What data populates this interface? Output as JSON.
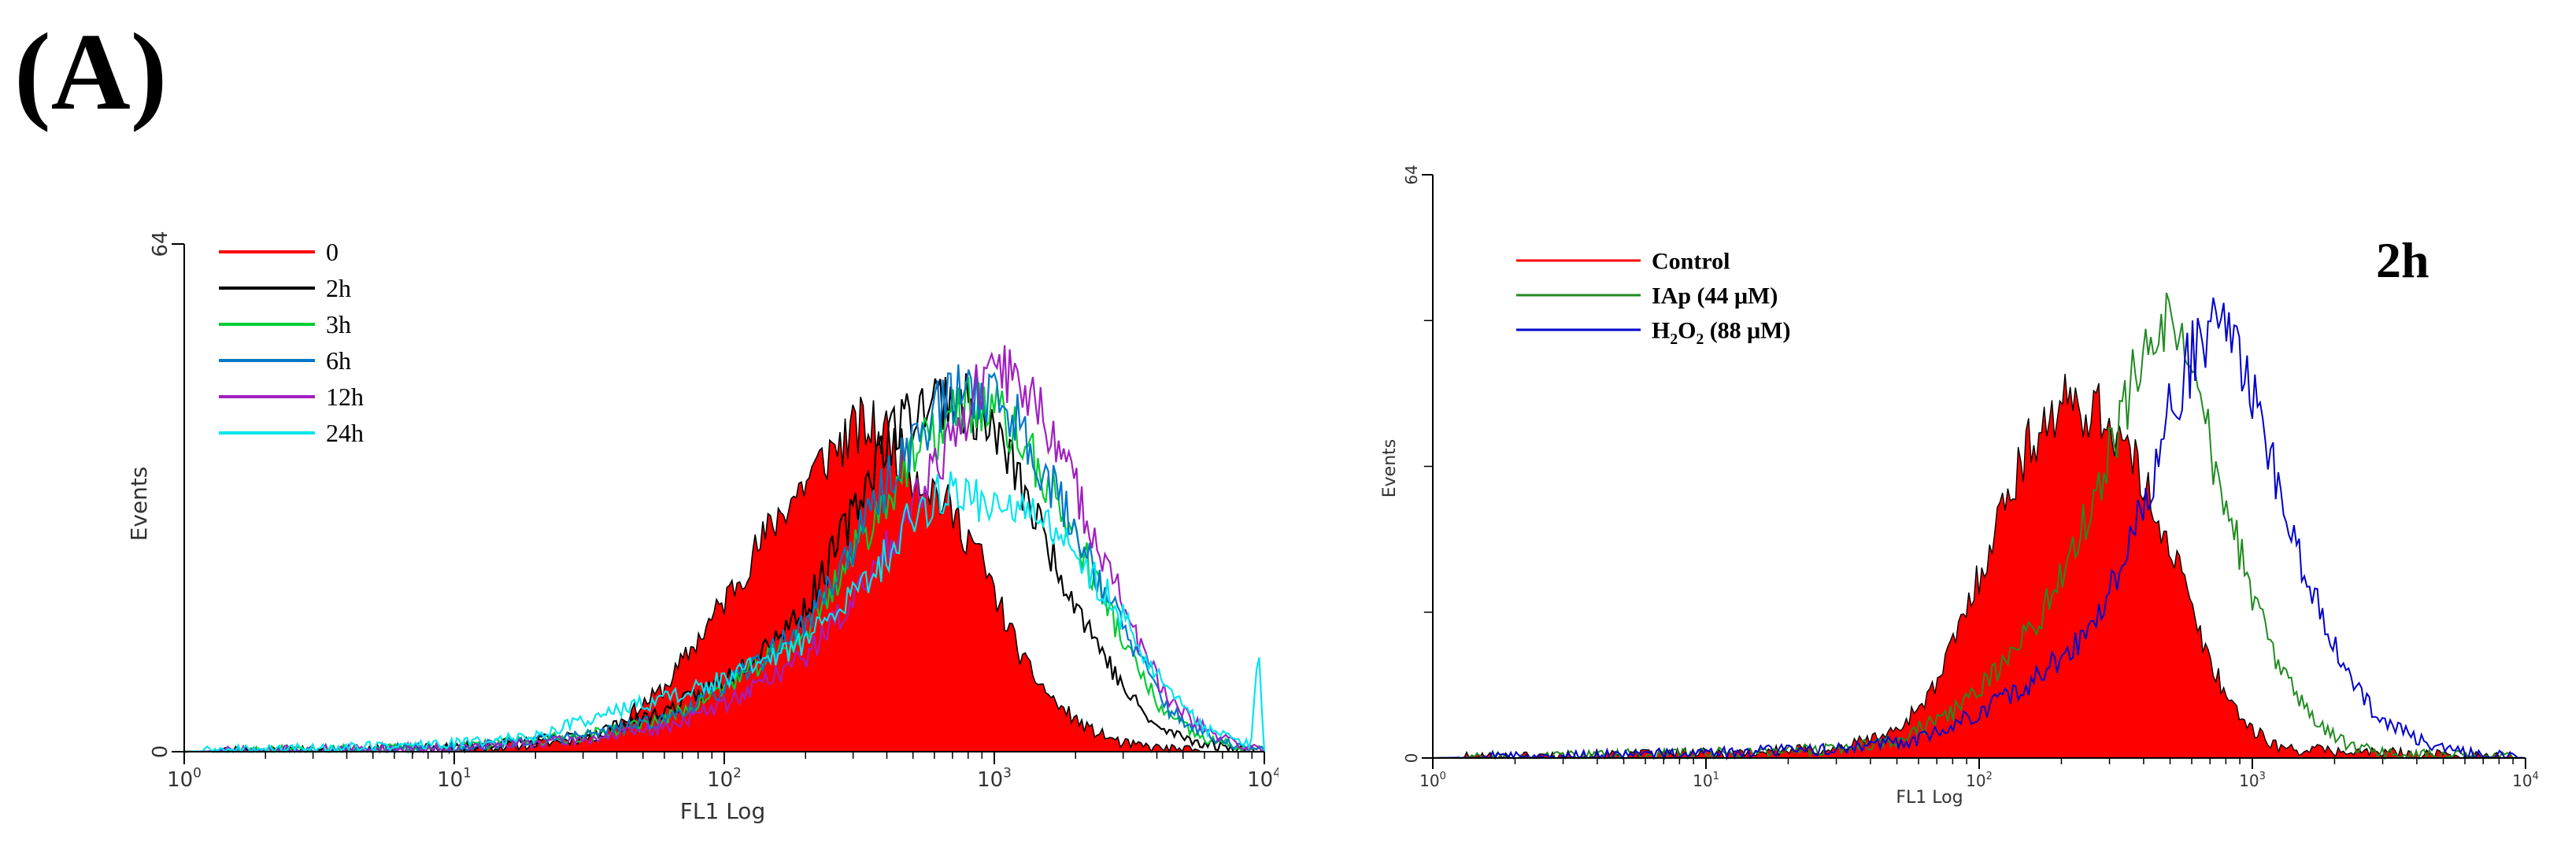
{
  "figure": {
    "panel_label": "(A)"
  },
  "chart_data": [
    {
      "type": "area",
      "subtype": "flow-cytometry-histogram",
      "title": "",
      "xlabel": "FL1 Log",
      "ylabel": "Events",
      "x_scale": "log",
      "xlim": [
        1,
        10000
      ],
      "ylim": [
        0,
        64
      ],
      "x_ticks": [
        {
          "value": 1,
          "base": "10",
          "exp": "0"
        },
        {
          "value": 10,
          "base": "10",
          "exp": "1"
        },
        {
          "value": 100,
          "base": "10",
          "exp": "2"
        },
        {
          "value": 1000,
          "base": "10",
          "exp": "3"
        },
        {
          "value": 10000,
          "base": "10",
          "exp": "4"
        }
      ],
      "y_ticks": [
        {
          "value": 0,
          "label": "0"
        },
        {
          "value": 64,
          "label": "64"
        }
      ],
      "legend_position": "top-left",
      "series": [
        {
          "name": "0",
          "color": "#ff0000",
          "filled": true,
          "seed": 11,
          "x": [
            1,
            8,
            20,
            35,
            60,
            100,
            160,
            250,
            320,
            400,
            480,
            600,
            700,
            850,
            1000,
            1300,
            1700,
            2200,
            3000,
            4000,
            6000,
            10000
          ],
          "y": [
            0,
            0,
            1,
            2,
            8,
            19,
            30,
            38,
            41,
            40,
            36,
            33,
            30,
            26,
            20,
            11,
            6,
            3,
            1,
            0.5,
            0,
            0
          ]
        },
        {
          "name": "2h",
          "color": "#000000",
          "filled": false,
          "seed": 23,
          "x": [
            1,
            10,
            30,
            60,
            100,
            200,
            300,
            400,
            550,
            700,
            900,
            1100,
            1400,
            1800,
            2300,
            3000,
            4000,
            6000,
            10000
          ],
          "y": [
            0,
            0.5,
            2,
            5,
            9,
            18,
            30,
            40,
            44,
            45,
            42,
            38,
            30,
            22,
            15,
            8,
            3,
            1,
            0
          ]
        },
        {
          "name": "3h",
          "color": "#00cc33",
          "filled": false,
          "seed": 37,
          "x": [
            1,
            10,
            30,
            60,
            100,
            200,
            300,
            450,
            600,
            800,
            1000,
            1200,
            1500,
            2000,
            2500,
            3200,
            4200,
            6000,
            10000
          ],
          "y": [
            0,
            0.5,
            2,
            4,
            8,
            15,
            25,
            35,
            40,
            44,
            43,
            40,
            35,
            27,
            20,
            12,
            5,
            1.5,
            0
          ]
        },
        {
          "name": "6h",
          "color": "#0077c8",
          "filled": false,
          "seed": 53,
          "x": [
            1,
            10,
            30,
            60,
            100,
            200,
            300,
            450,
            600,
            800,
            1000,
            1200,
            1500,
            2000,
            2600,
            3400,
            4500,
            6500,
            10000
          ],
          "y": [
            0,
            0.5,
            2,
            4,
            8,
            16,
            26,
            37,
            43,
            46,
            45,
            42,
            36,
            28,
            20,
            12,
            5,
            1.5,
            0
          ]
        },
        {
          "name": "12h",
          "color": "#a020c0",
          "filled": false,
          "seed": 71,
          "x": [
            1,
            10,
            30,
            60,
            100,
            200,
            350,
            500,
            700,
            900,
            1100,
            1300,
            1600,
            2000,
            2600,
            3400,
            4500,
            6500,
            10000
          ],
          "y": [
            0,
            0.5,
            1.5,
            3,
            6,
            12,
            22,
            32,
            40,
            46,
            48,
            46,
            41,
            33,
            24,
            14,
            6,
            2,
            0
          ]
        },
        {
          "name": "24h",
          "color": "#00e5ee",
          "filled": false,
          "seed": 89,
          "x": [
            1,
            10,
            20,
            30,
            50,
            100,
            200,
            350,
            500,
            700,
            900,
            1200,
            1600,
            2000,
            2600,
            3400,
            4500,
            6000,
            9000,
            9500,
            10000
          ],
          "y": [
            0,
            1,
            2,
            4,
            6,
            9,
            14,
            22,
            30,
            33,
            32,
            31,
            28,
            25,
            20,
            14,
            7,
            3,
            1,
            15,
            0
          ]
        }
      ]
    },
    {
      "type": "area",
      "subtype": "flow-cytometry-histogram",
      "title": "2h",
      "xlabel": "FL1 Log",
      "ylabel": "Events",
      "x_scale": "log",
      "xlim": [
        1,
        10000
      ],
      "ylim": [
        0,
        64
      ],
      "x_ticks": [
        {
          "value": 1,
          "base": "10",
          "exp": "0"
        },
        {
          "value": 10,
          "base": "10",
          "exp": "1"
        },
        {
          "value": 100,
          "base": "10",
          "exp": "2"
        },
        {
          "value": 1000,
          "base": "10",
          "exp": "3"
        },
        {
          "value": 10000,
          "base": "10",
          "exp": "4"
        }
      ],
      "y_ticks": [
        {
          "value": 0,
          "label": "0"
        },
        {
          "value": 64,
          "label": "64"
        }
      ],
      "y_minor_ticks": [
        16,
        32,
        48
      ],
      "legend_position": "top-left",
      "series": [
        {
          "name": "Control",
          "label_main": "Control",
          "label_sub": "",
          "label_rest": "",
          "color": "#ff0000",
          "filled": true,
          "seed": 101,
          "x": [
            1,
            10,
            30,
            50,
            70,
            100,
            130,
            170,
            220,
            280,
            330,
            400,
            480,
            550,
            650,
            800,
            1000,
            1300,
            10000
          ],
          "y": [
            0,
            0.5,
            1,
            3,
            8,
            20,
            30,
            37,
            39,
            38,
            35,
            30,
            25,
            20,
            13,
            7,
            3,
            1,
            0
          ]
        },
        {
          "name": "IAp (44 μM)",
          "label_main": "IAp (44 μM)",
          "label_sub": "",
          "label_rest": "",
          "color": "#228b22",
          "filled": false,
          "seed": 131,
          "x": [
            1,
            10,
            30,
            50,
            80,
            120,
            180,
            250,
            330,
            400,
            480,
            560,
            650,
            800,
            1000,
            1300,
            1700,
            2200,
            3000,
            10000
          ],
          "y": [
            0,
            0.5,
            1,
            2,
            5,
            10,
            17,
            27,
            37,
            45,
            47,
            44,
            38,
            28,
            18,
            9,
            4,
            1.5,
            0.5,
            0
          ]
        },
        {
          "name": "H2O2 (88 μM)",
          "label_main": "H",
          "label_sub": "2",
          "label_rest": "O",
          "label_sub2": "2",
          "label_tail": " (88 μM)",
          "color": "#0000cc",
          "filled": false,
          "seed": 157,
          "x": [
            1,
            10,
            30,
            60,
            100,
            150,
            220,
            300,
            400,
            500,
            600,
            700,
            850,
            1000,
            1200,
            1500,
            2000,
            2800,
            4000,
            6000,
            10000
          ],
          "y": [
            0,
            0.5,
            1,
            2,
            5,
            8,
            12,
            18,
            28,
            38,
            44,
            47,
            45,
            40,
            32,
            22,
            12,
            5,
            2,
            0.5,
            0
          ]
        }
      ]
    }
  ]
}
